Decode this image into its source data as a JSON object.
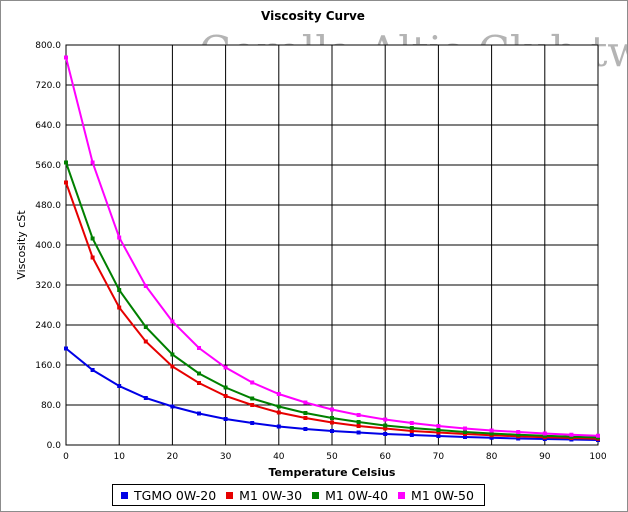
{
  "watermark": "Corolla-Altis-Club.tw",
  "chart_data": {
    "type": "line",
    "title": "Viscosity Curve",
    "xlabel": "Temperature Celsius",
    "ylabel": "Viscosity cSt",
    "xlim": [
      0,
      100
    ],
    "ylim": [
      0,
      800
    ],
    "x_ticks": [
      "0",
      "10",
      "20",
      "30",
      "40",
      "50",
      "60",
      "70",
      "80",
      "90",
      "100"
    ],
    "y_ticks": [
      "0.0",
      "80.0",
      "160.0",
      "240.0",
      "320.0",
      "400.0",
      "480.0",
      "560.0",
      "640.0",
      "720.0",
      "800.0"
    ],
    "x_tick_values": [
      0,
      10,
      20,
      30,
      40,
      50,
      60,
      70,
      80,
      90,
      100
    ],
    "y_tick_values": [
      0,
      80,
      160,
      240,
      320,
      400,
      480,
      560,
      640,
      720,
      800
    ],
    "grid": true,
    "legend_position": "bottom",
    "x": [
      0,
      5,
      10,
      15,
      20,
      25,
      30,
      35,
      40,
      45,
      50,
      55,
      60,
      65,
      70,
      75,
      80,
      85,
      90,
      95,
      100
    ],
    "series": [
      {
        "name": "TGMO 0W-20",
        "color": "#0000e6",
        "values": [
          193,
          150,
          118,
          94,
          77,
          63,
          52,
          44,
          37,
          32,
          28,
          25,
          22,
          20,
          18,
          16,
          14.5,
          13,
          12,
          11,
          10
        ]
      },
      {
        "name": "M1 0W-30",
        "color": "#e60000",
        "values": [
          525,
          375,
          275,
          207,
          157,
          124,
          98,
          80,
          65,
          54,
          45,
          38,
          33,
          28,
          25,
          22,
          19.5,
          17.5,
          15.5,
          14,
          12.5
        ]
      },
      {
        "name": "M1 0W-40",
        "color": "#008000",
        "values": [
          565,
          413,
          310,
          236,
          181,
          143,
          115,
          93,
          77,
          64,
          54,
          46,
          39,
          34,
          30,
          26,
          23,
          20.5,
          18.5,
          16.5,
          15
        ]
      },
      {
        "name": "M1 0W-50",
        "color": "#ff00ff",
        "values": [
          775,
          565,
          415,
          318,
          247,
          194,
          155,
          125,
          102,
          85,
          71,
          60,
          51,
          44,
          38,
          33,
          29,
          26,
          23,
          20.5,
          18.5
        ]
      }
    ]
  }
}
